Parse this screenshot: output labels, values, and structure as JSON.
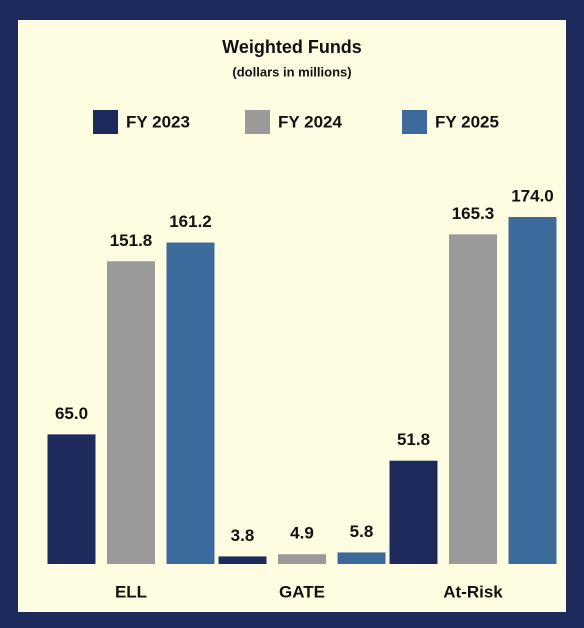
{
  "chart_data": {
    "type": "bar",
    "title": "Weighted Funds",
    "subtitle": "(dollars in millions)",
    "categories": [
      "ELL",
      "GATE",
      "At-Risk"
    ],
    "series": [
      {
        "name": "FY 2023",
        "color": "#1f2a5c",
        "values": [
          65.0,
          3.8,
          51.8
        ],
        "value_labels": [
          "65.0",
          "3.8",
          "51.8"
        ]
      },
      {
        "name": "FY 2024",
        "color": "#9a9a9a",
        "values": [
          151.8,
          4.9,
          165.3
        ],
        "value_labels": [
          "151.8",
          "4.9",
          "165.3"
        ]
      },
      {
        "name": "FY 2025",
        "color": "#3d6a9d",
        "values": [
          161.2,
          5.8,
          174.0
        ],
        "value_labels": [
          "161.2",
          "5.8",
          "174.0"
        ]
      }
    ],
    "legend": "top"
  }
}
